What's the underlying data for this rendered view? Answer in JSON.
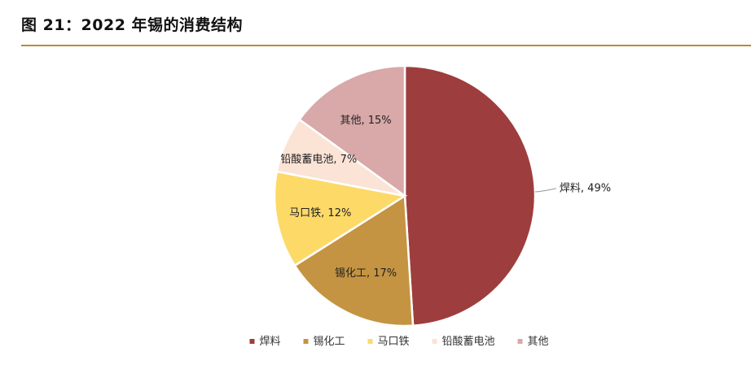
{
  "title": "图 21：2022 年锡的消费结构",
  "chart_data": {
    "type": "pie",
    "title": "",
    "legend_position": "bottom",
    "slices": [
      {
        "name": "焊料",
        "value": 49,
        "label": "焊料, 49%",
        "color": "#9e3d3d"
      },
      {
        "name": "锡化工",
        "value": 17,
        "label": "锡化工, 17%",
        "color": "#c49442"
      },
      {
        "name": "马口铁",
        "value": 12,
        "label": "马口铁, 12%",
        "color": "#fdd968"
      },
      {
        "name": "铅酸蓄电池",
        "value": 7,
        "label": "铅酸蓄电池, 7%",
        "color": "#fbe3d6"
      },
      {
        "name": "其他",
        "value": 15,
        "label": "其他, 15%",
        "color": "#d9a8a8"
      }
    ]
  }
}
